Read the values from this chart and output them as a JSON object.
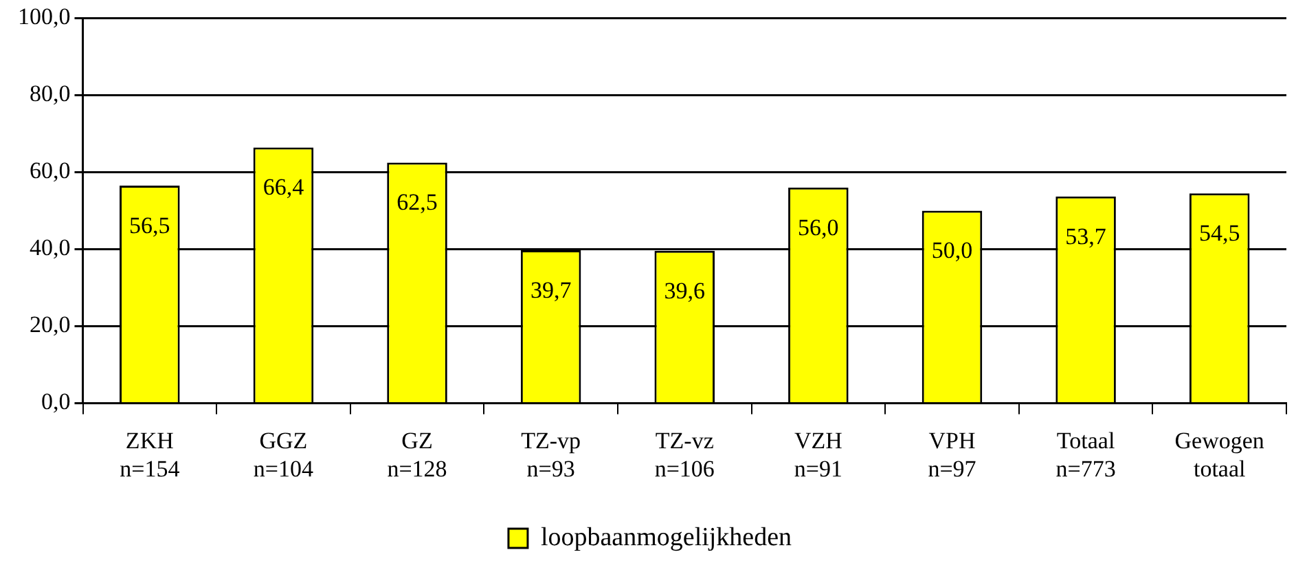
{
  "chart_data": {
    "type": "bar",
    "categories": [
      "ZKH\nn=154",
      "GGZ\nn=104",
      "GZ\nn=128",
      "TZ-vp\nn=93",
      "TZ-vz\nn=106",
      "VZH\nn=91",
      "VPH\nn=97",
      "Totaal\nn=773",
      "Gewogen\ntotaal"
    ],
    "series": [
      {
        "name": "loopbaanmogelijkheden",
        "color": "#ffff00",
        "values": [
          56.5,
          66.4,
          62.5,
          39.7,
          39.6,
          56.0,
          50.0,
          53.7,
          54.5
        ],
        "value_labels": [
          "56,5",
          "66,4",
          "62,5",
          "39,7",
          "39,6",
          "56,0",
          "50,0",
          "53,7",
          "54,5"
        ]
      }
    ],
    "ylim": [
      0,
      100
    ],
    "yticks": [
      {
        "value": 0,
        "label": "0,0"
      },
      {
        "value": 20,
        "label": "20,0"
      },
      {
        "value": 40,
        "label": "40,0"
      },
      {
        "value": 60,
        "label": "60,0"
      },
      {
        "value": 80,
        "label": "80,0"
      },
      {
        "value": 100,
        "label": "100,0"
      }
    ],
    "grid": "y",
    "legend": "bottom"
  }
}
